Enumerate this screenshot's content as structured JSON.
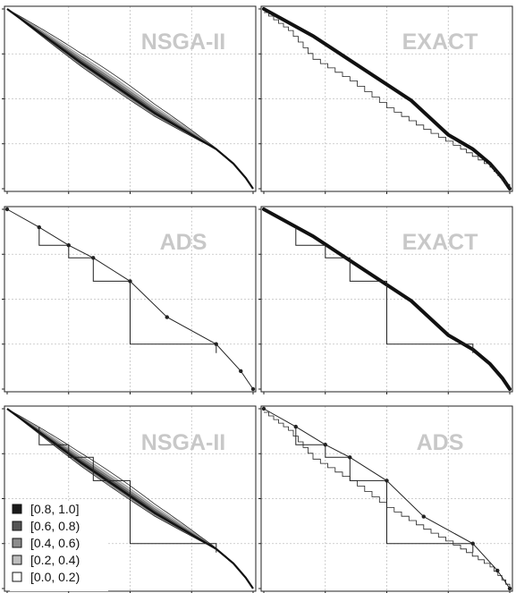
{
  "legend": {
    "entries": [
      {
        "label": "[0.8, 1.0]",
        "color": "#1a1a1a"
      },
      {
        "label": "[0.6, 0.8)",
        "color": "#555555"
      },
      {
        "label": "[0.4, 0.6)",
        "color": "#8c8c8c"
      },
      {
        "label": "[0.2, 0.4)",
        "color": "#bdbdbd"
      },
      {
        "label": "[0.0, 0.2)",
        "color": "#ffffff"
      }
    ]
  },
  "chart_data": [
    {
      "type": "line",
      "title": "NSGA-II",
      "grid": true,
      "series": [
        {
          "style": "attainment-band",
          "shape": "smooth-front",
          "values": [
            [
              0,
              1.0
            ],
            [
              0.1,
              0.9
            ],
            [
              0.2,
              0.8
            ],
            [
              0.3,
              0.7
            ],
            [
              0.45,
              0.56
            ],
            [
              0.6,
              0.42
            ],
            [
              0.75,
              0.3
            ],
            [
              0.85,
              0.22
            ],
            [
              0.92,
              0.14
            ],
            [
              0.97,
              0.06
            ],
            [
              1.0,
              0.0
            ]
          ]
        }
      ]
    },
    {
      "type": "line",
      "title": "EXACT",
      "grid": true,
      "series": [
        {
          "style": "dense-front",
          "values": [
            [
              0,
              1.0
            ],
            [
              0.2,
              0.85
            ],
            [
              0.4,
              0.67
            ],
            [
              0.6,
              0.49
            ],
            [
              0.75,
              0.3
            ],
            [
              0.85,
              0.22
            ],
            [
              0.92,
              0.14
            ],
            [
              0.97,
              0.06
            ],
            [
              1.0,
              0.0
            ]
          ]
        },
        {
          "style": "thin-staircase",
          "values": [
            [
              0,
              0.98
            ],
            [
              0.1,
              0.88
            ],
            [
              0.2,
              0.72
            ],
            [
              0.35,
              0.6
            ],
            [
              0.5,
              0.45
            ],
            [
              0.65,
              0.33
            ],
            [
              0.8,
              0.22
            ],
            [
              0.92,
              0.12
            ],
            [
              1.0,
              0.0
            ]
          ]
        }
      ]
    },
    {
      "type": "line",
      "title": "ADS",
      "grid": true,
      "series": [
        {
          "style": "sparse-front",
          "values": [
            [
              0,
              1.0
            ],
            [
              0.13,
              0.9
            ],
            [
              0.25,
              0.8
            ],
            [
              0.35,
              0.73
            ],
            [
              0.5,
              0.6
            ],
            [
              0.65,
              0.4
            ],
            [
              0.85,
              0.25
            ],
            [
              0.95,
              0.1
            ],
            [
              1.0,
              0.0
            ]
          ]
        },
        {
          "style": "staircase",
          "values": [
            [
              0.13,
              0.9
            ],
            [
              0.25,
              0.8
            ],
            [
              0.35,
              0.73
            ],
            [
              0.5,
              0.6
            ],
            [
              0.85,
              0.25
            ]
          ]
        }
      ]
    },
    {
      "type": "line",
      "title": "EXACT",
      "grid": true,
      "series": [
        {
          "style": "dense-front",
          "values": [
            [
              0,
              1.0
            ],
            [
              0.2,
              0.85
            ],
            [
              0.4,
              0.67
            ],
            [
              0.6,
              0.49
            ],
            [
              0.75,
              0.3
            ],
            [
              0.85,
              0.22
            ],
            [
              0.92,
              0.14
            ],
            [
              0.97,
              0.06
            ],
            [
              1.0,
              0.0
            ]
          ]
        },
        {
          "style": "staircase",
          "values": [
            [
              0.13,
              0.9
            ],
            [
              0.25,
              0.8
            ],
            [
              0.35,
              0.73
            ],
            [
              0.5,
              0.6
            ],
            [
              0.85,
              0.25
            ]
          ]
        }
      ]
    },
    {
      "type": "line",
      "title": "NSGA-II",
      "grid": true,
      "series": [
        {
          "style": "attainment-band",
          "shape": "smooth-front",
          "values": [
            [
              0,
              1.0
            ],
            [
              0.1,
              0.9
            ],
            [
              0.2,
              0.8
            ],
            [
              0.3,
              0.7
            ],
            [
              0.45,
              0.56
            ],
            [
              0.6,
              0.42
            ],
            [
              0.75,
              0.3
            ],
            [
              0.85,
              0.22
            ],
            [
              0.92,
              0.14
            ],
            [
              0.97,
              0.06
            ],
            [
              1.0,
              0.0
            ]
          ]
        },
        {
          "style": "staircase",
          "values": [
            [
              0.13,
              0.9
            ],
            [
              0.25,
              0.8
            ],
            [
              0.35,
              0.73
            ],
            [
              0.5,
              0.6
            ],
            [
              0.85,
              0.25
            ]
          ]
        }
      ]
    },
    {
      "type": "line",
      "title": "ADS",
      "grid": true,
      "series": [
        {
          "style": "sparse-front",
          "values": [
            [
              0,
              1.0
            ],
            [
              0.13,
              0.9
            ],
            [
              0.25,
              0.8
            ],
            [
              0.35,
              0.73
            ],
            [
              0.5,
              0.6
            ],
            [
              0.65,
              0.4
            ],
            [
              0.85,
              0.25
            ],
            [
              0.95,
              0.1
            ],
            [
              1.0,
              0.0
            ]
          ]
        },
        {
          "style": "thin-staircase",
          "values": [
            [
              0,
              0.98
            ],
            [
              0.1,
              0.88
            ],
            [
              0.2,
              0.72
            ],
            [
              0.35,
              0.6
            ],
            [
              0.5,
              0.45
            ],
            [
              0.65,
              0.33
            ],
            [
              0.8,
              0.22
            ],
            [
              0.92,
              0.12
            ],
            [
              1.0,
              0.0
            ]
          ]
        },
        {
          "style": "staircase",
          "values": [
            [
              0.13,
              0.9
            ],
            [
              0.25,
              0.8
            ],
            [
              0.35,
              0.73
            ],
            [
              0.5,
              0.6
            ],
            [
              0.85,
              0.25
            ]
          ]
        }
      ]
    }
  ]
}
